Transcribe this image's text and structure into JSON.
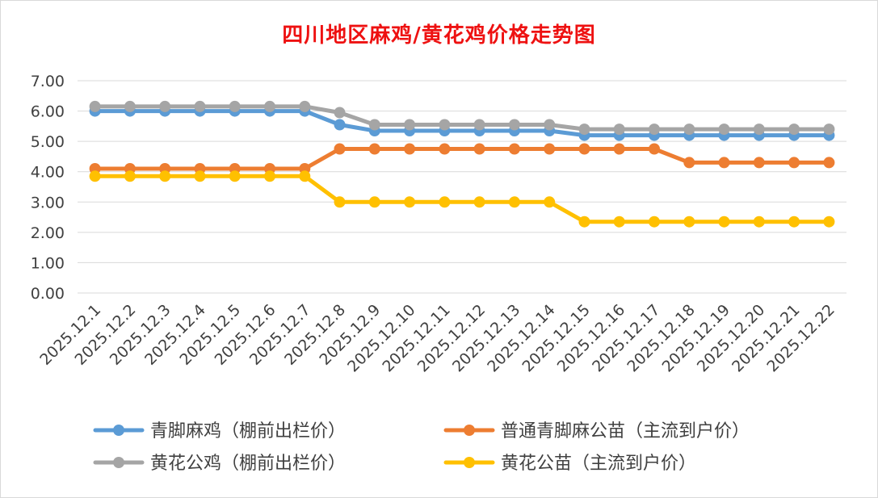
{
  "chart_data": {
    "type": "line",
    "title": "四川地区麻鸡/黄花鸡价格走势图",
    "categories": [
      "2025.12.1",
      "2025.12.2",
      "2025.12.3",
      "2025.12.4",
      "2025.12.5",
      "2025.12.6",
      "2025.12.7",
      "2025.12.8",
      "2025.12.9",
      "2025.12.10",
      "2025.12.11",
      "2025.12.12",
      "2025.12.13",
      "2025.12.14",
      "2025.12.15",
      "2025.12.16",
      "2025.12.17",
      "2025.12.18",
      "2025.12.19",
      "2025.12.20",
      "2025.12.21",
      "2025.12.22"
    ],
    "yticks": [
      "7.00",
      "6.00",
      "5.00",
      "4.00",
      "3.00",
      "2.00",
      "1.00",
      "0.00"
    ],
    "ylim": [
      0,
      7
    ],
    "grid": true,
    "legend_position": "bottom",
    "series": [
      {
        "name": "青脚麻鸡（棚前出栏价）",
        "color": "#5b9bd5",
        "values": [
          6.0,
          6.0,
          6.0,
          6.0,
          6.0,
          6.0,
          6.0,
          5.55,
          5.35,
          5.35,
          5.35,
          5.35,
          5.35,
          5.35,
          5.2,
          5.2,
          5.2,
          5.2,
          5.2,
          5.2,
          5.2,
          5.2
        ]
      },
      {
        "name": "普通青脚麻公苗（主流到户价）",
        "color": "#ed7d31",
        "values": [
          4.1,
          4.1,
          4.1,
          4.1,
          4.1,
          4.1,
          4.1,
          4.75,
          4.75,
          4.75,
          4.75,
          4.75,
          4.75,
          4.75,
          4.75,
          4.75,
          4.75,
          4.3,
          4.3,
          4.3,
          4.3,
          4.3
        ]
      },
      {
        "name": "黄花公鸡（棚前出栏价）",
        "color": "#a5a5a5",
        "values": [
          6.15,
          6.15,
          6.15,
          6.15,
          6.15,
          6.15,
          6.15,
          5.95,
          5.55,
          5.55,
          5.55,
          5.55,
          5.55,
          5.55,
          5.4,
          5.4,
          5.4,
          5.4,
          5.4,
          5.4,
          5.4,
          5.4
        ]
      },
      {
        "name": "黄花公苗（主流到户价）",
        "color": "#ffc000",
        "values": [
          3.85,
          3.85,
          3.85,
          3.85,
          3.85,
          3.85,
          3.85,
          3.0,
          3.0,
          3.0,
          3.0,
          3.0,
          3.0,
          3.0,
          2.35,
          2.35,
          2.35,
          2.35,
          2.35,
          2.35,
          2.35,
          2.35
        ]
      }
    ]
  }
}
